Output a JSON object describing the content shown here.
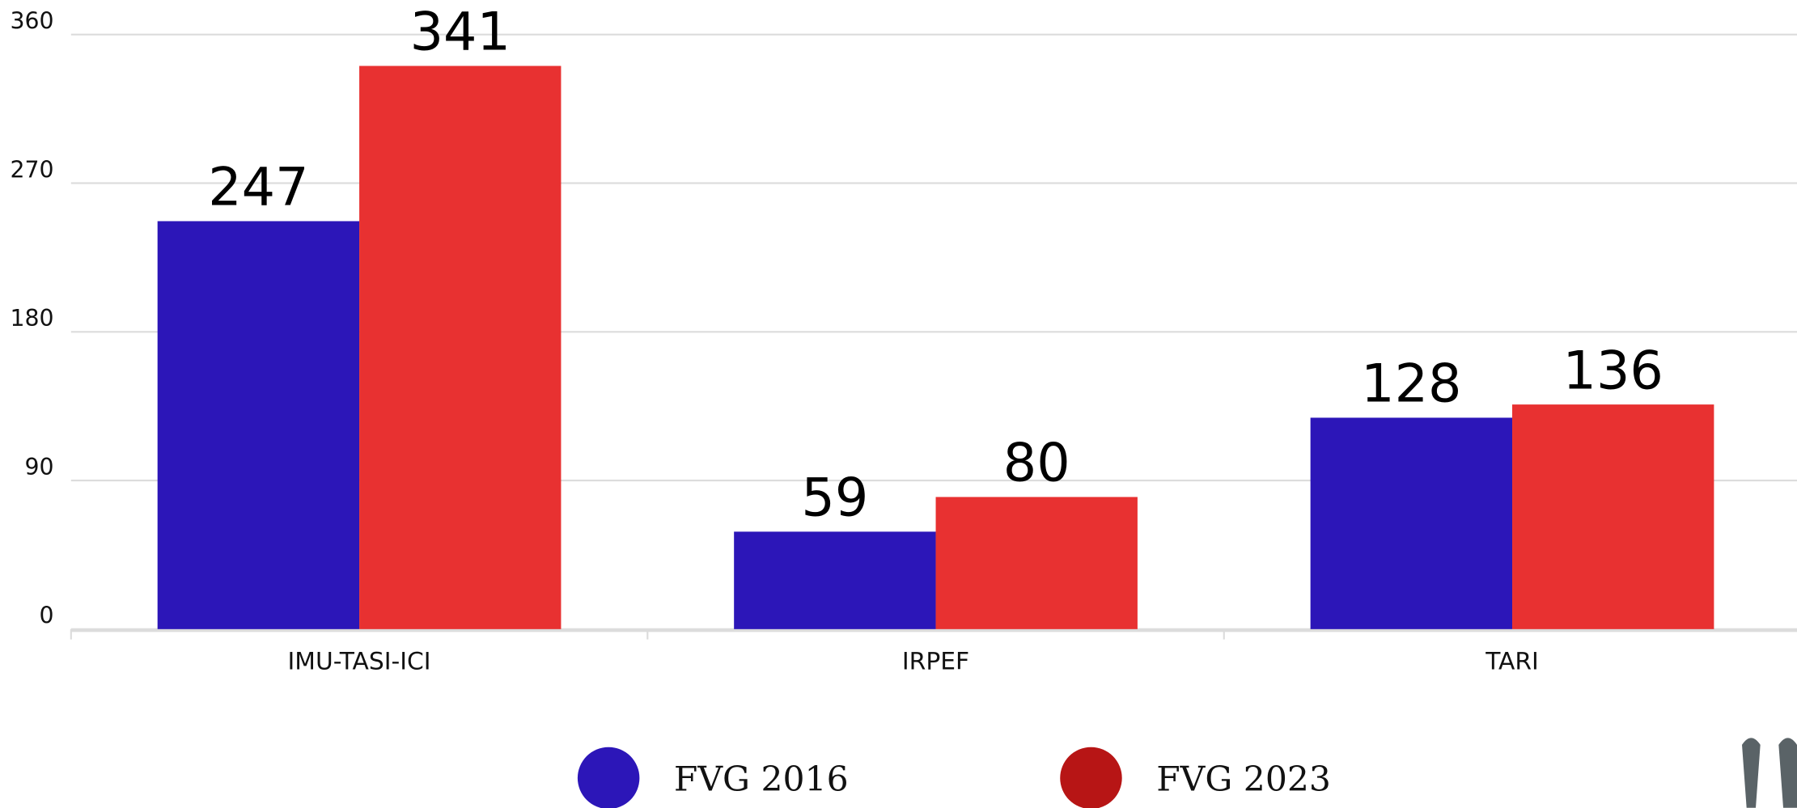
{
  "chart_data": {
    "type": "bar",
    "categories": [
      "IMU-TASI-ICI",
      "IRPEF",
      "TARI"
    ],
    "series": [
      {
        "name": "FVG 2016",
        "color": "#2c16b8",
        "legend_color": "#2c16b8",
        "values": [
          247,
          59,
          128
        ]
      },
      {
        "name": "FVG 2023",
        "color": "#e83131",
        "legend_color": "#b71515",
        "values": [
          341,
          80,
          136
        ]
      }
    ],
    "ylim": [
      0,
      360
    ],
    "yticks": [
      0,
      90,
      180,
      270,
      360
    ],
    "grid": true
  }
}
